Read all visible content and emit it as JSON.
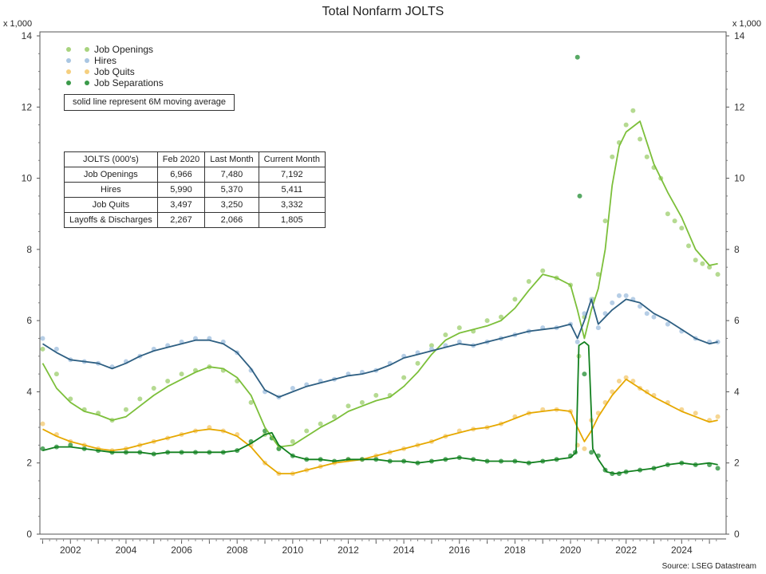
{
  "title": "Total Nonfarm JOLTS",
  "unit_left": "x 1,000",
  "unit_right": "x 1,000",
  "source": "Source: LSEG Datastream",
  "note": "solid line represent 6M moving average",
  "legend": [
    {
      "label": "Job Openings",
      "color": "#a8d37e"
    },
    {
      "label": "Hires",
      "color": "#a9c6e2"
    },
    {
      "label": "Job Quits",
      "color": "#f5cf7f"
    },
    {
      "label": "Job Separations",
      "color": "#3b9a4a"
    }
  ],
  "table": {
    "headers": [
      "JOLTS (000's)",
      "Feb 2020",
      "Last Month",
      "Current Month"
    ],
    "rows": [
      [
        "Job Openings",
        "6,966",
        "7,480",
        "7,192"
      ],
      [
        "Hires",
        "5,990",
        "5,370",
        "5,411"
      ],
      [
        "Job Quits",
        "3,497",
        "3,250",
        "3,332"
      ],
      [
        "Layoffs & Discharges",
        "2,267",
        "2,066",
        "1,805"
      ]
    ]
  },
  "chart_data": {
    "type": "scatter",
    "title": "Total Nonfarm JOLTS",
    "ylabel": "x 1,000",
    "xlim": [
      2000.9,
      2025.6
    ],
    "ylim": [
      0,
      14
    ],
    "x_ticks": [
      2002,
      2004,
      2006,
      2008,
      2010,
      2012,
      2014,
      2016,
      2018,
      2020,
      2022,
      2024
    ],
    "y_ticks": [
      0,
      2,
      4,
      6,
      8,
      10,
      12,
      14
    ],
    "grid": false,
    "legend_position": "top-left",
    "series": [
      {
        "name": "Job Openings",
        "dot_color": "#a8d37e",
        "line_color": "#7cbf3a",
        "x": [
          2001.0,
          2001.5,
          2002.0,
          2002.5,
          2003.0,
          2003.5,
          2004.0,
          2004.5,
          2005.0,
          2005.5,
          2006.0,
          2006.5,
          2007.0,
          2007.5,
          2008.0,
          2008.5,
          2009.0,
          2009.5,
          2010.0,
          2010.5,
          2011.0,
          2011.5,
          2012.0,
          2012.5,
          2013.0,
          2013.5,
          2014.0,
          2014.5,
          2015.0,
          2015.5,
          2016.0,
          2016.5,
          2017.0,
          2017.5,
          2018.0,
          2018.5,
          2019.0,
          2019.5,
          2020.0,
          2020.3,
          2020.5,
          2020.8,
          2021.0,
          2021.25,
          2021.5,
          2021.75,
          2022.0,
          2022.25,
          2022.5,
          2022.75,
          2023.0,
          2023.25,
          2023.5,
          2023.75,
          2024.0,
          2024.25,
          2024.5,
          2024.75,
          2025.0,
          2025.3
        ],
        "y": [
          5.2,
          4.5,
          3.8,
          3.5,
          3.4,
          3.2,
          3.5,
          3.8,
          4.1,
          4.3,
          4.5,
          4.6,
          4.7,
          4.6,
          4.3,
          3.7,
          2.8,
          2.4,
          2.6,
          2.9,
          3.1,
          3.3,
          3.6,
          3.7,
          3.9,
          3.9,
          4.4,
          4.8,
          5.3,
          5.6,
          5.8,
          5.7,
          6.0,
          6.1,
          6.6,
          7.1,
          7.4,
          7.2,
          7.0,
          5.0,
          6.1,
          6.6,
          7.3,
          8.8,
          10.6,
          11.0,
          11.5,
          11.9,
          11.1,
          10.6,
          10.3,
          10.0,
          9.0,
          8.8,
          8.6,
          8.1,
          7.7,
          7.6,
          7.5,
          7.3
        ]
      },
      {
        "name": "Hires",
        "dot_color": "#a9c6e2",
        "line_color": "#2e5f82",
        "x": [
          2001.0,
          2001.5,
          2002.0,
          2002.5,
          2003.0,
          2003.5,
          2004.0,
          2004.5,
          2005.0,
          2005.5,
          2006.0,
          2006.5,
          2007.0,
          2007.5,
          2008.0,
          2008.5,
          2009.0,
          2009.5,
          2010.0,
          2010.5,
          2011.0,
          2011.5,
          2012.0,
          2012.5,
          2013.0,
          2013.5,
          2014.0,
          2014.5,
          2015.0,
          2015.5,
          2016.0,
          2016.5,
          2017.0,
          2017.5,
          2018.0,
          2018.5,
          2019.0,
          2019.5,
          2020.0,
          2020.25,
          2020.5,
          2020.75,
          2021.0,
          2021.25,
          2021.5,
          2021.75,
          2022.0,
          2022.25,
          2022.5,
          2022.75,
          2023.0,
          2023.5,
          2024.0,
          2024.5,
          2025.0,
          2025.3
        ],
        "y": [
          5.5,
          5.2,
          4.9,
          4.85,
          4.8,
          4.7,
          4.85,
          5.0,
          5.2,
          5.3,
          5.4,
          5.5,
          5.5,
          5.4,
          5.1,
          4.6,
          4.0,
          3.85,
          4.1,
          4.2,
          4.3,
          4.35,
          4.5,
          4.55,
          4.6,
          4.8,
          5.0,
          5.1,
          5.2,
          5.3,
          5.4,
          5.3,
          5.4,
          5.5,
          5.6,
          5.7,
          5.8,
          5.8,
          5.9,
          5.4,
          6.2,
          6.6,
          5.8,
          6.2,
          6.5,
          6.7,
          6.7,
          6.6,
          6.4,
          6.2,
          6.1,
          5.9,
          5.7,
          5.5,
          5.4,
          5.4
        ]
      },
      {
        "name": "Job Quits",
        "dot_color": "#f5cf7f",
        "line_color": "#e6a800",
        "x": [
          2001.0,
          2001.5,
          2002.0,
          2002.5,
          2003.0,
          2003.5,
          2004.0,
          2004.5,
          2005.0,
          2005.5,
          2006.0,
          2006.5,
          2007.0,
          2007.5,
          2008.0,
          2008.5,
          2009.0,
          2009.5,
          2010.0,
          2010.5,
          2011.0,
          2011.5,
          2012.0,
          2012.5,
          2013.0,
          2013.5,
          2014.0,
          2014.5,
          2015.0,
          2015.5,
          2016.0,
          2016.5,
          2017.0,
          2017.5,
          2018.0,
          2018.5,
          2019.0,
          2019.5,
          2020.0,
          2020.25,
          2020.5,
          2020.75,
          2021.0,
          2021.25,
          2021.5,
          2021.75,
          2022.0,
          2022.25,
          2022.5,
          2022.75,
          2023.0,
          2023.5,
          2024.0,
          2024.5,
          2025.0,
          2025.3
        ],
        "y": [
          3.1,
          2.8,
          2.6,
          2.5,
          2.4,
          2.35,
          2.4,
          2.5,
          2.6,
          2.7,
          2.8,
          2.9,
          3.0,
          2.9,
          2.8,
          2.5,
          2.0,
          1.7,
          1.7,
          1.8,
          1.9,
          2.0,
          2.1,
          2.1,
          2.2,
          2.3,
          2.4,
          2.5,
          2.6,
          2.75,
          2.9,
          2.95,
          3.0,
          3.1,
          3.3,
          3.4,
          3.5,
          3.5,
          3.45,
          2.5,
          2.4,
          3.2,
          3.4,
          3.7,
          4.0,
          4.3,
          4.4,
          4.3,
          4.1,
          4.0,
          3.9,
          3.7,
          3.5,
          3.4,
          3.2,
          3.3
        ]
      },
      {
        "name": "Job Separations",
        "dot_color": "#3b9a4a",
        "line_color": "#12801f",
        "x": [
          2001.0,
          2001.5,
          2002.0,
          2002.5,
          2003.0,
          2003.5,
          2004.0,
          2004.5,
          2005.0,
          2005.5,
          2006.0,
          2006.5,
          2007.0,
          2007.5,
          2008.0,
          2008.5,
          2009.0,
          2009.25,
          2009.5,
          2010.0,
          2010.5,
          2011.0,
          2011.5,
          2012.0,
          2012.5,
          2013.0,
          2013.5,
          2014.0,
          2014.5,
          2015.0,
          2015.5,
          2016.0,
          2016.5,
          2017.0,
          2017.5,
          2018.0,
          2018.5,
          2019.0,
          2019.5,
          2020.0,
          2020.17,
          2020.25,
          2020.33,
          2020.5,
          2020.75,
          2021.0,
          2021.25,
          2021.5,
          2021.75,
          2022.0,
          2022.5,
          2023.0,
          2023.5,
          2024.0,
          2024.5,
          2025.0,
          2025.3
        ],
        "y": [
          2.4,
          2.45,
          2.5,
          2.4,
          2.35,
          2.3,
          2.3,
          2.3,
          2.25,
          2.3,
          2.3,
          2.3,
          2.3,
          2.3,
          2.35,
          2.6,
          2.9,
          2.7,
          2.4,
          2.2,
          2.1,
          2.1,
          2.05,
          2.1,
          2.1,
          2.1,
          2.05,
          2.05,
          2.0,
          2.05,
          2.1,
          2.15,
          2.1,
          2.05,
          2.05,
          2.05,
          2.0,
          2.05,
          2.1,
          2.2,
          2.3,
          13.4,
          9.5,
          4.5,
          2.3,
          2.2,
          1.8,
          1.7,
          1.7,
          1.75,
          1.8,
          1.85,
          1.95,
          2.0,
          1.95,
          1.95,
          1.85
        ]
      }
    ],
    "moving_average": {
      "Job Openings": {
        "x": [
          2001.0,
          2001.5,
          2002.0,
          2002.5,
          2003.0,
          2003.5,
          2004.0,
          2004.5,
          2005.0,
          2005.5,
          2006.0,
          2006.5,
          2007.0,
          2007.5,
          2008.0,
          2008.5,
          2009.0,
          2009.5,
          2010.0,
          2010.5,
          2011.0,
          2011.5,
          2012.0,
          2012.5,
          2013.0,
          2013.5,
          2014.0,
          2014.5,
          2015.0,
          2015.5,
          2016.0,
          2016.5,
          2017.0,
          2017.5,
          2018.0,
          2018.5,
          2019.0,
          2019.5,
          2020.0,
          2020.25,
          2020.5,
          2020.75,
          2021.0,
          2021.25,
          2021.5,
          2021.75,
          2022.0,
          2022.5,
          2023.0,
          2023.5,
          2024.0,
          2024.5,
          2025.0,
          2025.3
        ],
        "y": [
          4.8,
          4.1,
          3.7,
          3.45,
          3.35,
          3.2,
          3.3,
          3.6,
          3.9,
          4.15,
          4.35,
          4.55,
          4.7,
          4.65,
          4.4,
          3.9,
          3.0,
          2.45,
          2.5,
          2.75,
          3.0,
          3.2,
          3.45,
          3.6,
          3.75,
          3.85,
          4.15,
          4.55,
          5.05,
          5.45,
          5.65,
          5.75,
          5.85,
          6.0,
          6.35,
          6.85,
          7.3,
          7.2,
          7.0,
          6.3,
          5.5,
          6.3,
          6.9,
          8.0,
          9.8,
          10.9,
          11.3,
          11.6,
          10.4,
          9.6,
          8.9,
          8.0,
          7.55,
          7.6
        ]
      },
      "Hires": {
        "x": [
          2001.0,
          2001.5,
          2002.0,
          2002.5,
          2003.0,
          2003.5,
          2004.0,
          2004.5,
          2005.0,
          2005.5,
          2006.0,
          2006.5,
          2007.0,
          2007.5,
          2008.0,
          2008.5,
          2009.0,
          2009.5,
          2010.0,
          2010.5,
          2011.0,
          2011.5,
          2012.0,
          2012.5,
          2013.0,
          2013.5,
          2014.0,
          2014.5,
          2015.0,
          2015.5,
          2016.0,
          2016.5,
          2017.0,
          2017.5,
          2018.0,
          2018.5,
          2019.0,
          2019.5,
          2020.0,
          2020.25,
          2020.5,
          2020.75,
          2021.0,
          2021.5,
          2022.0,
          2022.5,
          2023.0,
          2023.5,
          2024.0,
          2024.5,
          2025.0,
          2025.3
        ],
        "y": [
          5.35,
          5.1,
          4.9,
          4.85,
          4.8,
          4.65,
          4.8,
          5.0,
          5.15,
          5.25,
          5.35,
          5.45,
          5.45,
          5.35,
          5.1,
          4.65,
          4.05,
          3.85,
          4.0,
          4.15,
          4.25,
          4.35,
          4.45,
          4.5,
          4.6,
          4.75,
          4.95,
          5.05,
          5.15,
          5.25,
          5.35,
          5.3,
          5.4,
          5.5,
          5.6,
          5.7,
          5.75,
          5.8,
          5.9,
          5.5,
          6.0,
          6.6,
          5.9,
          6.3,
          6.6,
          6.5,
          6.2,
          6.0,
          5.75,
          5.5,
          5.35,
          5.4
        ]
      },
      "Job Quits": {
        "x": [
          2001.0,
          2001.5,
          2002.0,
          2002.5,
          2003.0,
          2003.5,
          2004.0,
          2004.5,
          2005.0,
          2005.5,
          2006.0,
          2006.5,
          2007.0,
          2007.5,
          2008.0,
          2008.5,
          2009.0,
          2009.5,
          2010.0,
          2010.5,
          2011.0,
          2011.5,
          2012.0,
          2012.5,
          2013.0,
          2013.5,
          2014.0,
          2014.5,
          2015.0,
          2015.5,
          2016.0,
          2016.5,
          2017.0,
          2017.5,
          2018.0,
          2018.5,
          2019.0,
          2019.5,
          2020.0,
          2020.25,
          2020.5,
          2020.75,
          2021.0,
          2021.5,
          2022.0,
          2022.5,
          2023.0,
          2023.5,
          2024.0,
          2024.5,
          2025.0,
          2025.3
        ],
        "y": [
          2.95,
          2.75,
          2.6,
          2.5,
          2.4,
          2.35,
          2.4,
          2.5,
          2.6,
          2.7,
          2.8,
          2.9,
          2.95,
          2.9,
          2.75,
          2.45,
          2.0,
          1.7,
          1.7,
          1.8,
          1.9,
          2.0,
          2.05,
          2.1,
          2.2,
          2.3,
          2.4,
          2.5,
          2.6,
          2.75,
          2.85,
          2.95,
          3.0,
          3.1,
          3.25,
          3.4,
          3.45,
          3.5,
          3.45,
          3.0,
          2.6,
          2.9,
          3.3,
          3.9,
          4.35,
          4.1,
          3.85,
          3.65,
          3.45,
          3.3,
          3.15,
          3.2
        ]
      },
      "Job Separations": {
        "x": [
          2001.0,
          2001.5,
          2002.0,
          2002.5,
          2003.0,
          2003.5,
          2004.0,
          2004.5,
          2005.0,
          2005.5,
          2006.0,
          2006.5,
          2007.0,
          2007.5,
          2008.0,
          2008.5,
          2009.0,
          2009.25,
          2009.5,
          2010.0,
          2010.5,
          2011.0,
          2011.5,
          2012.0,
          2012.5,
          2013.0,
          2013.5,
          2014.0,
          2014.5,
          2015.0,
          2015.5,
          2016.0,
          2016.5,
          2017.0,
          2017.5,
          2018.0,
          2018.5,
          2019.0,
          2019.5,
          2020.0,
          2020.2,
          2020.3,
          2020.5,
          2020.65,
          2020.8,
          2021.0,
          2021.3,
          2021.6,
          2022.0,
          2022.5,
          2023.0,
          2023.5,
          2024.0,
          2024.5,
          2025.0,
          2025.3
        ],
        "y": [
          2.35,
          2.45,
          2.45,
          2.4,
          2.35,
          2.3,
          2.3,
          2.3,
          2.25,
          2.3,
          2.3,
          2.3,
          2.3,
          2.3,
          2.35,
          2.55,
          2.8,
          2.85,
          2.5,
          2.2,
          2.1,
          2.1,
          2.05,
          2.1,
          2.1,
          2.1,
          2.05,
          2.05,
          2.0,
          2.05,
          2.1,
          2.15,
          2.1,
          2.05,
          2.05,
          2.05,
          2.0,
          2.05,
          2.1,
          2.15,
          2.3,
          5.3,
          5.4,
          5.3,
          2.4,
          2.1,
          1.75,
          1.7,
          1.75,
          1.8,
          1.85,
          1.95,
          2.0,
          1.95,
          2.0,
          1.95
        ]
      }
    }
  }
}
